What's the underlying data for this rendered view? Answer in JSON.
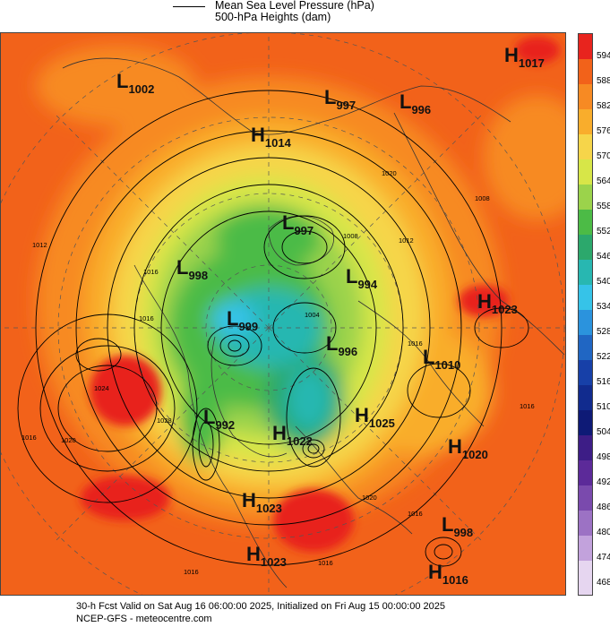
{
  "legend": {
    "line1": "Mean Sea Level Pressure (hPa)",
    "line2": "500-hPa Heights (dam)"
  },
  "colorbar": {
    "labels": [
      "594",
      "588",
      "582",
      "576",
      "570",
      "564",
      "558",
      "552",
      "546",
      "540",
      "534",
      "528",
      "522",
      "516",
      "510",
      "504",
      "498",
      "492",
      "486",
      "480",
      "474",
      "468"
    ],
    "colors": [
      "#e8241e",
      "#f2621a",
      "#f78a23",
      "#f9ad2c",
      "#f6d54a",
      "#d7e648",
      "#9bd34b",
      "#4cbb46",
      "#2ca86c",
      "#28b7b1",
      "#36c3e8",
      "#2b93dd",
      "#2066c3",
      "#1740a8",
      "#112b8e",
      "#0e1a76",
      "#3d1d86",
      "#5c2a99",
      "#7a4aad",
      "#9c72c4",
      "#c2a2dc",
      "#e6d6f0"
    ]
  },
  "systems": [
    {
      "type": "H",
      "value": "1017"
    },
    {
      "type": "L",
      "value": "1002"
    },
    {
      "type": "L",
      "value": "997"
    },
    {
      "type": "L",
      "value": "996"
    },
    {
      "type": "H",
      "value": "1014"
    },
    {
      "type": "L",
      "value": "997"
    },
    {
      "type": "L",
      "value": "998"
    },
    {
      "type": "L",
      "value": "994"
    },
    {
      "type": "H",
      "value": "1023"
    },
    {
      "type": "L",
      "value": "999"
    },
    {
      "type": "L",
      "value": "996"
    },
    {
      "type": "L",
      "value": "1010"
    },
    {
      "type": "L",
      "value": "992"
    },
    {
      "type": "H",
      "value": "1025"
    },
    {
      "type": "H",
      "value": "1022"
    },
    {
      "type": "H",
      "value": "1020"
    },
    {
      "type": "H",
      "value": "1023"
    },
    {
      "type": "L",
      "value": "998"
    },
    {
      "type": "H",
      "value": "1023"
    },
    {
      "type": "H",
      "value": "1016"
    }
  ],
  "isobar_labels": [
    "1012",
    "1016",
    "1024",
    "1020",
    "1028",
    "1016",
    "1020",
    "1008",
    "1008",
    "1012",
    "1016",
    "1016",
    "1016",
    "1020",
    "1004",
    "1016",
    "1016",
    "1016"
  ],
  "footer": {
    "line1": "30-h Fcst Valid on Sat Aug 16 06:00:00 2025, Initialized on Fri Aug 15 00:00:00 2025",
    "line2": "NCEP-GFS - meteocentre.com"
  }
}
